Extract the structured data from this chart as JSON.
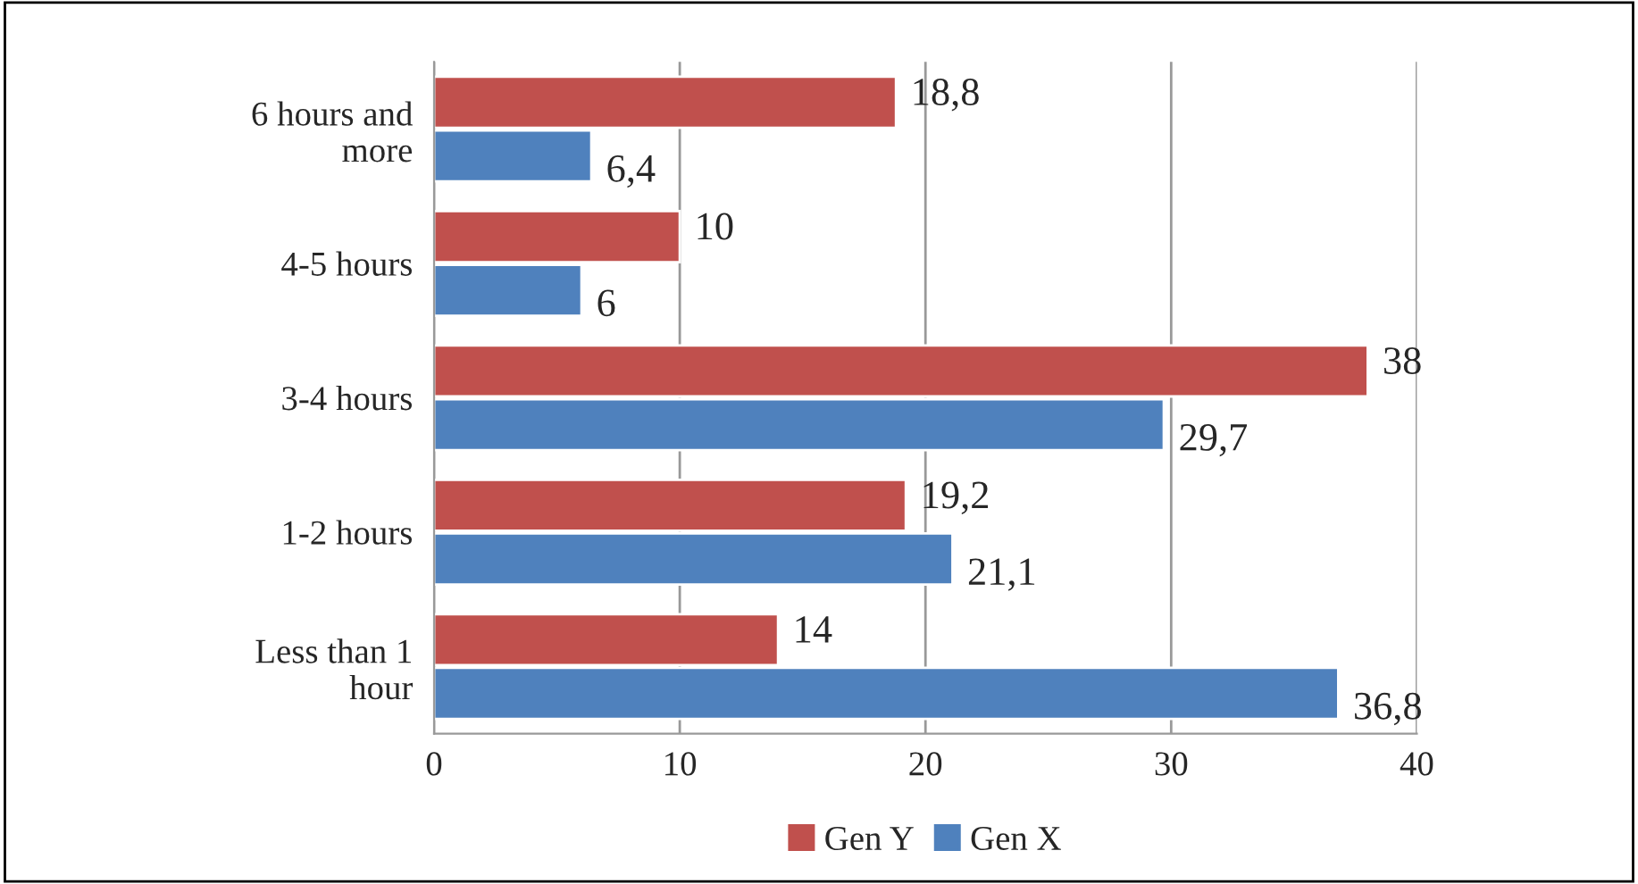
{
  "chart_data": {
    "type": "bar",
    "orientation": "horizontal",
    "categories": [
      "6 hours and more",
      "4-5 hours",
      "3-4 hours",
      "1-2 hours",
      "Less than 1 hour"
    ],
    "series": [
      {
        "name": "Gen Y",
        "color": "#c0504d",
        "values": [
          18.8,
          10,
          38,
          19.2,
          14
        ],
        "value_labels": [
          "18,8",
          "10",
          "38",
          "19,2",
          "14"
        ]
      },
      {
        "name": "Gen X",
        "color": "#4f81bd",
        "values": [
          6.4,
          6,
          29.7,
          21.1,
          36.8
        ],
        "value_labels": [
          "6,4",
          "6",
          "29,7",
          "21,1",
          "36,8"
        ]
      }
    ],
    "xlim": [
      0,
      40
    ],
    "xticks": [
      0,
      10,
      20,
      30,
      40
    ],
    "grid": "x",
    "legend": "bottom"
  }
}
